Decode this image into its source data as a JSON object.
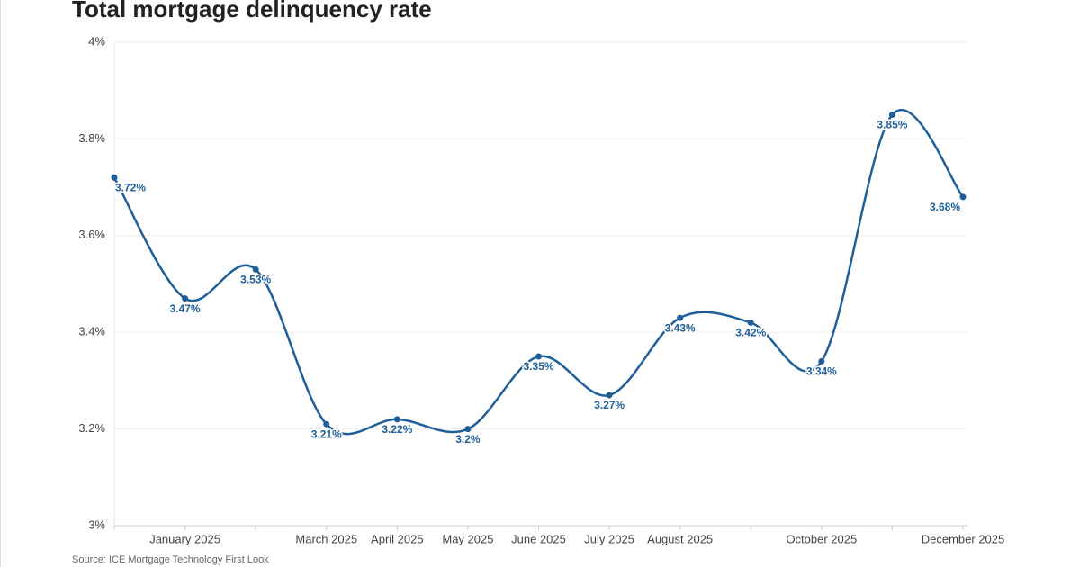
{
  "chart_data": {
    "type": "line",
    "title": "Total mortgage delinquency rate",
    "source": "Source: ICE Mortgage Technology First Look",
    "categories": [
      null,
      "January 2025",
      null,
      "March 2025",
      "April 2025",
      "May 2025",
      "June 2025",
      "July 2025",
      "August 2025",
      null,
      "October 2025",
      null,
      "December 2025"
    ],
    "series": [
      {
        "name": "Total mortgage delinquency rate",
        "color": "#1f5f99",
        "values": [
          3.72,
          3.47,
          3.53,
          3.21,
          3.22,
          3.2,
          3.35,
          3.27,
          3.43,
          3.42,
          3.34,
          3.85,
          3.68
        ],
        "value_labels": [
          "3.72%",
          "3.47%",
          "3.53%",
          "3.21%",
          "3.22%",
          "3.2%",
          "3.35%",
          "3.27%",
          "3.43%",
          "3.42%",
          "3.34%",
          "3.85%",
          "3.68%"
        ]
      }
    ],
    "ylim": [
      3,
      4
    ],
    "yticks": [
      {
        "value": 3,
        "label": "3%"
      },
      {
        "value": 3.2,
        "label": "3.2%"
      },
      {
        "value": 3.4,
        "label": "3.4%"
      },
      {
        "value": 3.6,
        "label": "3.6%"
      },
      {
        "value": 3.8,
        "label": "3.8%"
      },
      {
        "value": 4,
        "label": "4%"
      }
    ],
    "grid": true
  }
}
